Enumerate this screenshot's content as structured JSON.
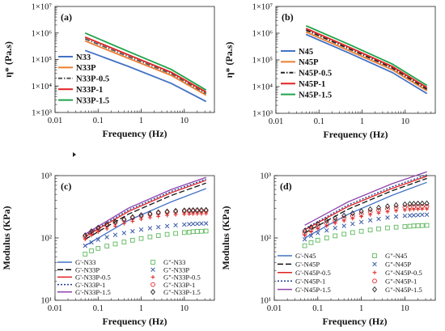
{
  "chart_data": [
    {
      "panel": "(a)",
      "type": "line",
      "xlabel": "Frequency (Hz)",
      "ylabel": "η* (Pa.s)",
      "xscale": "log",
      "yscale": "log",
      "xlim": [
        0.01,
        50
      ],
      "ylim": [
        1000,
        10000000
      ],
      "xticks": [
        "0.01",
        "0.1",
        "1",
        "10"
      ],
      "yticks": [
        "1×10³",
        "1×10⁴",
        "1×10⁵",
        "1×10⁶",
        "1×10⁷"
      ],
      "legend_position": "bottom-right",
      "series": [
        {
          "name": "N33",
          "color": "#4472c4",
          "dash": "solid",
          "x": [
            0.05,
            0.5,
            5,
            32
          ],
          "y": [
            220000,
            55000,
            12500,
            2600
          ]
        },
        {
          "name": "N33P",
          "color": "#ed7d31",
          "dash": "solid",
          "x": [
            0.05,
            0.5,
            5,
            32
          ],
          "y": [
            500000,
            110000,
            25000,
            4500
          ]
        },
        {
          "name": "N33P-0.5",
          "color": "#555555",
          "dash": "dashdot",
          "x": [
            0.05,
            0.5,
            5,
            32
          ],
          "y": [
            600000,
            130000,
            29000,
            5200
          ]
        },
        {
          "name": "N33P-1",
          "color": "#e02020",
          "dash": "solid",
          "x": [
            0.05,
            0.5,
            5,
            32
          ],
          "y": [
            700000,
            150000,
            33000,
            5900
          ]
        },
        {
          "name": "N33P-1.5",
          "color": "#1fa34a",
          "dash": "solid",
          "x": [
            0.05,
            0.5,
            5,
            32
          ],
          "y": [
            1000000,
            200000,
            42000,
            7000
          ]
        }
      ]
    },
    {
      "panel": "(b)",
      "type": "line",
      "xlabel": "Frequency (Hz)",
      "ylabel": "η* (Pa.s)",
      "xscale": "log",
      "yscale": "log",
      "xlim": [
        0.01,
        50
      ],
      "ylim": [
        1000,
        10000000
      ],
      "xticks": [
        "0.01",
        "0.1",
        "1",
        "10"
      ],
      "yticks": [
        "1×10³",
        "1×10⁴",
        "1×10⁵",
        "1×10⁶",
        "1×10⁷"
      ],
      "legend_position": "bottom-left",
      "series": [
        {
          "name": "N45",
          "color": "#4472c4",
          "dash": "solid",
          "x": [
            0.05,
            0.5,
            5,
            32
          ],
          "y": [
            900000,
            180000,
            34000,
            5500
          ]
        },
        {
          "name": "N45P",
          "color": "#ed7d31",
          "dash": "solid",
          "x": [
            0.05,
            0.5,
            5,
            32
          ],
          "y": [
            1100000,
            220000,
            43000,
            7000
          ]
        },
        {
          "name": "N45P-0.5",
          "color": "#222222",
          "dash": "dashdot",
          "x": [
            0.05,
            0.5,
            5,
            32
          ],
          "y": [
            1300000,
            260000,
            50000,
            8000
          ]
        },
        {
          "name": "N45P-1",
          "color": "#e02020",
          "dash": "solid",
          "x": [
            0.05,
            0.5,
            5,
            32
          ],
          "y": [
            1500000,
            300000,
            57000,
            9200
          ]
        },
        {
          "name": "N45P-1.5",
          "color": "#1fa34a",
          "dash": "solid",
          "x": [
            0.05,
            0.5,
            5,
            32
          ],
          "y": [
            1900000,
            380000,
            70000,
            11000
          ]
        }
      ]
    },
    {
      "panel": "(c)",
      "type": "line",
      "xlabel": "Frequency (Hz)",
      "ylabel": "Modulus (KPa)",
      "xscale": "log",
      "yscale": "log",
      "xlim": [
        0.01,
        50
      ],
      "ylim": [
        10,
        1000
      ],
      "xticks": [
        "0.01",
        "0.1",
        "1",
        "10"
      ],
      "yticks": [
        "10¹",
        "10²",
        "10³"
      ],
      "legend_position": "bottom",
      "x_points": [
        0.05,
        0.07,
        0.1,
        0.16,
        0.25,
        0.4,
        0.63,
        1,
        1.6,
        2.5,
        4,
        6.3,
        10,
        13,
        16,
        20,
        25,
        32
      ],
      "series": [
        {
          "name": "G'-N33",
          "color": "#4472c4",
          "dash": "solid",
          "marker": "none",
          "x": [
            0.05,
            0.5,
            5,
            32
          ],
          "y": [
            75,
            190,
            380,
            620
          ]
        },
        {
          "name": "G'-N33P",
          "color": "#111111",
          "dash": "longdash",
          "marker": "none",
          "x": [
            0.05,
            0.5,
            5,
            32
          ],
          "y": [
            95,
            240,
            480,
            760
          ]
        },
        {
          "name": "G'-N33P-0.5",
          "color": "#e02020",
          "dash": "solid",
          "marker": "none",
          "x": [
            0.05,
            0.5,
            5,
            32
          ],
          "y": [
            105,
            265,
            530,
            840
          ]
        },
        {
          "name": "G'-N33P-1",
          "color": "#1f3a93",
          "dash": "dotted",
          "marker": "none",
          "x": [
            0.05,
            0.5,
            5,
            32
          ],
          "y": [
            110,
            280,
            560,
            880
          ]
        },
        {
          "name": "G'-N33P-1.5",
          "color": "#8e44ad",
          "dash": "solid",
          "marker": "none",
          "x": [
            0.05,
            0.5,
            5,
            32
          ],
          "y": [
            115,
            300,
            600,
            940
          ]
        },
        {
          "name": "G\"-N33",
          "color": "#5cb85c",
          "marker": "square",
          "values": [
            55,
            62,
            68,
            74,
            80,
            86,
            92,
            98,
            104,
            109,
            114,
            118,
            122,
            124,
            126,
            127,
            128,
            129
          ]
        },
        {
          "name": "G\"-N33P",
          "color": "#3b5ba5",
          "marker": "x",
          "values": [
            75,
            85,
            94,
            103,
            112,
            120,
            128,
            136,
            143,
            149,
            155,
            160,
            164,
            166,
            168,
            169,
            170,
            171
          ]
        },
        {
          "name": "G\"-N33P-0.5",
          "color": "#e02020",
          "marker": "plus",
          "values": [
            95,
            110,
            125,
            140,
            155,
            170,
            185,
            200,
            212,
            222,
            230,
            236,
            240,
            242,
            243,
            244,
            244,
            245
          ]
        },
        {
          "name": "G\"-N33P-1",
          "color": "#e02020",
          "marker": "circle",
          "values": [
            105,
            122,
            140,
            158,
            176,
            194,
            210,
            225,
            238,
            250,
            258,
            264,
            268,
            270,
            271,
            272,
            272,
            273
          ]
        },
        {
          "name": "G\"-N33P-1.5",
          "color": "#222222",
          "marker": "diamond",
          "values": [
            110,
            128,
            146,
            164,
            182,
            200,
            216,
            232,
            246,
            258,
            266,
            272,
            276,
            278,
            279,
            280,
            280,
            281
          ]
        }
      ]
    },
    {
      "panel": "(d)",
      "type": "line",
      "xlabel": "Frequency (Hz)",
      "ylabel": "Modulus (KPa)",
      "xscale": "log",
      "yscale": "log",
      "xlim": [
        0.01,
        50
      ],
      "ylim": [
        10,
        1000
      ],
      "xticks": [
        "0.01",
        "0.1",
        "1",
        "10"
      ],
      "yticks": [
        "10¹",
        "10²",
        "10³"
      ],
      "legend_position": "bottom",
      "x_points": [
        0.05,
        0.07,
        0.1,
        0.16,
        0.25,
        0.4,
        0.63,
        1,
        1.6,
        2.5,
        4,
        6.3,
        10,
        13,
        16,
        20,
        25,
        32
      ],
      "series": [
        {
          "name": "G'-N45",
          "color": "#4472c4",
          "dash": "solid",
          "marker": "none",
          "x": [
            0.05,
            0.5,
            5,
            32
          ],
          "y": [
            100,
            240,
            480,
            780
          ]
        },
        {
          "name": "G'-N45P",
          "color": "#111111",
          "dash": "longdash",
          "marker": "none",
          "x": [
            0.05,
            0.5,
            5,
            32
          ],
          "y": [
            120,
            290,
            570,
            900
          ]
        },
        {
          "name": "G'-N45P-0.5",
          "color": "#e02020",
          "dash": "solid",
          "marker": "none",
          "x": [
            0.05,
            0.5,
            5,
            32
          ],
          "y": [
            135,
            320,
            620,
            980
          ]
        },
        {
          "name": "G'-N45P-1",
          "color": "#1f3a93",
          "dash": "dotted",
          "marker": "none",
          "x": [
            0.05,
            0.5,
            5,
            32
          ],
          "y": [
            140,
            340,
            660,
            1030
          ]
        },
        {
          "name": "G'-N45P-1.5",
          "color": "#8e44ad",
          "dash": "solid",
          "marker": "none",
          "x": [
            0.05,
            0.5,
            5,
            32
          ],
          "y": [
            160,
            380,
            740,
            1150
          ]
        },
        {
          "name": "G\"-N45",
          "color": "#5cb85c",
          "marker": "square",
          "values": [
            75,
            84,
            92,
            100,
            108,
            115,
            122,
            128,
            134,
            140,
            145,
            149,
            152,
            154,
            156,
            157,
            158,
            159
          ]
        },
        {
          "name": "G\"-N45P",
          "color": "#3b5ba5",
          "marker": "x",
          "values": [
            95,
            108,
            120,
            132,
            144,
            156,
            168,
            180,
            192,
            202,
            212,
            220,
            226,
            229,
            231,
            233,
            235,
            236
          ]
        },
        {
          "name": "G\"-N45P-0.5",
          "color": "#e02020",
          "marker": "plus",
          "values": [
            110,
            125,
            140,
            156,
            172,
            188,
            204,
            220,
            235,
            250,
            262,
            272,
            280,
            284,
            287,
            289,
            290,
            291
          ]
        },
        {
          "name": "G\"-N45P-1",
          "color": "#e02020",
          "marker": "circle",
          "values": [
            120,
            137,
            154,
            172,
            190,
            208,
            226,
            244,
            262,
            278,
            292,
            304,
            312,
            316,
            318,
            320,
            321,
            322
          ]
        },
        {
          "name": "G\"-N45P-1.5",
          "color": "#222222",
          "marker": "diamond",
          "values": [
            130,
            149,
            168,
            188,
            208,
            228,
            248,
            268,
            288,
            306,
            322,
            336,
            346,
            351,
            354,
            356,
            357,
            358
          ]
        }
      ]
    }
  ]
}
